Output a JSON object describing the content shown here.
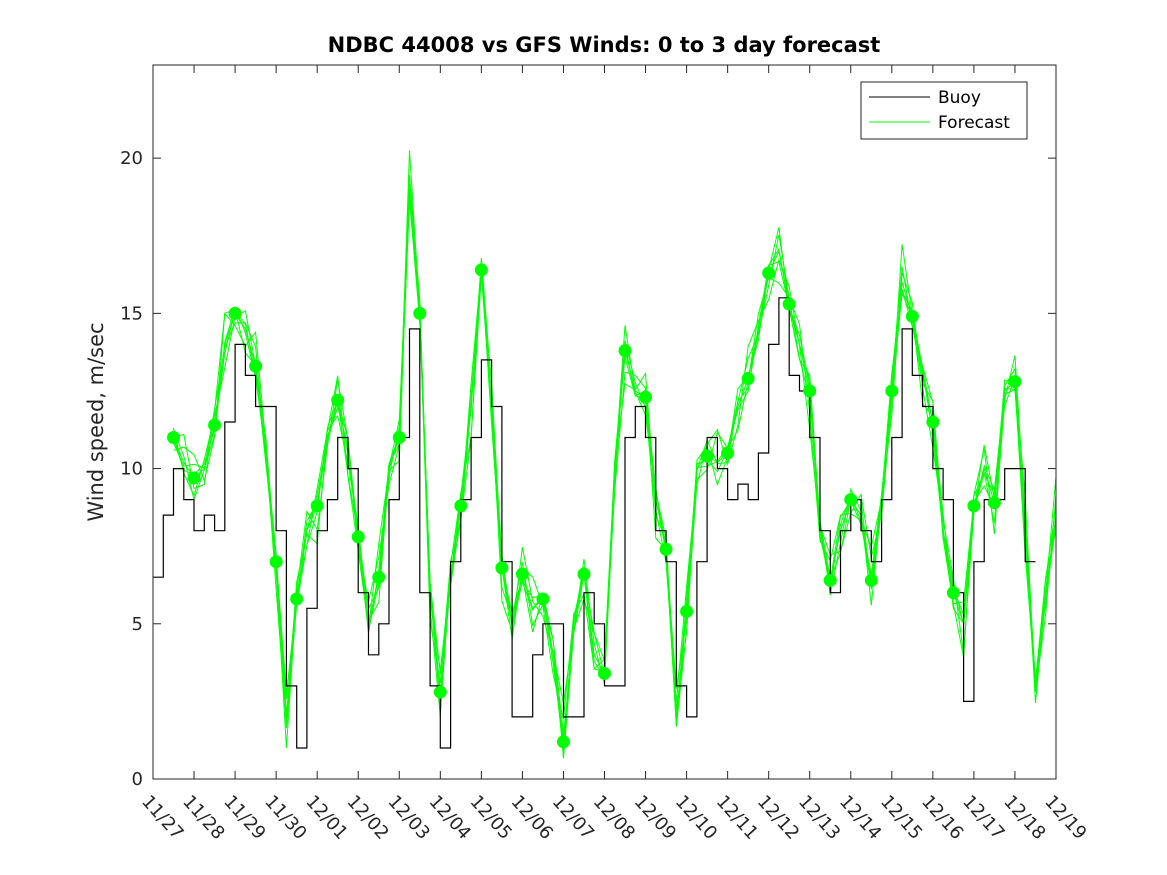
{
  "chart_data": {
    "type": "line",
    "title": "NDBC 44008 vs GFS Winds: 0 to 3 day forecast",
    "xlabel": "",
    "ylabel": "Wind speed, m/sec",
    "xlim": [
      0,
      22
    ],
    "ylim": [
      0,
      23
    ],
    "yticks": [
      0,
      5,
      10,
      15,
      20
    ],
    "ytick_labels": [
      "0",
      "5",
      "10",
      "15",
      "20"
    ],
    "xtick_labels": [
      "11/27",
      "11/28",
      "11/29",
      "11/30",
      "12/01",
      "12/02",
      "12/03",
      "12/04",
      "12/05",
      "12/06",
      "12/07",
      "12/08",
      "12/09",
      "12/10",
      "12/11",
      "12/12",
      "12/13",
      "12/14",
      "12/15",
      "12/16",
      "12/17",
      "12/18",
      "12/19"
    ],
    "legend": {
      "location": "top-right",
      "entries": [
        "Buoy",
        "Forecast"
      ]
    },
    "colors": {
      "buoy": "#000000",
      "forecast": "#00ff00",
      "axes": "#262626"
    },
    "series": [
      {
        "name": "Buoy",
        "style": "stepped-line",
        "x": [
          0,
          0.25,
          0.5,
          0.75,
          1,
          1.25,
          1.5,
          1.75,
          2,
          2.25,
          2.5,
          2.75,
          3,
          3.25,
          3.5,
          3.75,
          4,
          4.25,
          4.5,
          4.75,
          5,
          5.25,
          5.5,
          5.75,
          6,
          6.25,
          6.5,
          6.75,
          7,
          7.25,
          7.5,
          7.75,
          8,
          8.25,
          8.5,
          8.75,
          9,
          9.25,
          9.5,
          9.75,
          10,
          10.25,
          10.5,
          10.75,
          11,
          11.25,
          11.5,
          11.75,
          12,
          12.25,
          12.5,
          12.75,
          13,
          13.25,
          13.5,
          13.75,
          14,
          14.25,
          14.5,
          14.75,
          15,
          15.25,
          15.5,
          15.75,
          16,
          16.25,
          16.5,
          16.75,
          17,
          17.25,
          17.5,
          17.75,
          18,
          18.25,
          18.5,
          18.75,
          19,
          19.25,
          19.5,
          19.75,
          20,
          20.25,
          20.5,
          20.75,
          21,
          21.25
        ],
        "values": [
          6.5,
          8.5,
          10,
          9,
          8,
          8.5,
          8,
          11.5,
          14,
          13,
          12,
          12,
          8,
          3,
          1,
          5.5,
          8,
          9,
          11,
          10,
          6,
          4,
          5,
          9,
          11,
          14.5,
          6,
          3,
          1,
          7,
          9,
          11,
          13.5,
          12,
          7,
          2,
          2,
          4,
          5,
          5,
          2,
          2,
          6,
          5,
          3,
          3,
          11,
          12,
          11,
          8,
          7,
          3,
          2,
          7,
          11,
          10,
          9,
          9.5,
          9,
          10.5,
          14,
          15.5,
          13,
          12.5,
          11,
          8,
          6,
          8,
          9,
          8,
          7,
          9,
          11,
          14.5,
          13,
          12,
          10,
          9,
          6,
          2.5,
          7,
          9,
          9,
          10,
          10,
          7
        ]
      },
      {
        "name": "Forecast",
        "style": "multi-line",
        "x": [
          0.5,
          0.75,
          1,
          1.25,
          1.5,
          1.75,
          2,
          2.25,
          2.5,
          2.75,
          3,
          3.25,
          3.5,
          3.75,
          4,
          4.25,
          4.5,
          4.75,
          5,
          5.25,
          5.5,
          5.75,
          6,
          6.25,
          6.5,
          6.75,
          7,
          7.25,
          7.5,
          7.75,
          8,
          8.25,
          8.5,
          8.75,
          9,
          9.25,
          9.5,
          9.75,
          10,
          10.25,
          10.5,
          10.75,
          11,
          11.25,
          11.5,
          11.75,
          12,
          12.25,
          12.5,
          12.75,
          13,
          13.25,
          13.5,
          13.75,
          14,
          14.25,
          14.5,
          14.75,
          15,
          15.25,
          15.5,
          15.75,
          16,
          16.25,
          16.5,
          16.75,
          17,
          17.25,
          17.5,
          17.75,
          18,
          18.25,
          18.5,
          18.75,
          19,
          19.25,
          19.5,
          19.75,
          20,
          20.25,
          20.5,
          20.75,
          21,
          21.25,
          21.5,
          21.75,
          22
        ],
        "values": [
          11,
          10.2,
          9.7,
          10,
          11.4,
          14,
          15,
          14.5,
          13.3,
          10.5,
          7,
          2,
          5.8,
          8,
          8.8,
          11,
          12.2,
          10.5,
          7.8,
          5,
          6.5,
          10,
          11,
          19,
          15,
          6,
          2.8,
          6.5,
          8.8,
          12,
          16.4,
          12,
          6.8,
          5,
          6.6,
          5.5,
          5.8,
          4,
          1.2,
          5,
          6.6,
          4,
          3.4,
          10,
          13.8,
          12.5,
          12.3,
          9,
          7.4,
          2,
          5.4,
          10,
          10.4,
          10.2,
          10.5,
          12,
          12.9,
          14.5,
          16.3,
          17,
          15.3,
          14,
          12.5,
          8,
          6.4,
          8,
          9,
          8.5,
          6.4,
          9,
          12.5,
          16,
          14.9,
          13,
          11.5,
          8,
          6,
          5,
          8.8,
          10,
          8.9,
          12.5,
          12.8,
          8,
          3,
          6,
          8.5
        ]
      }
    ],
    "forecast_markers": {
      "x": [
        0.5,
        1,
        1.5,
        2,
        2.5,
        3,
        3.5,
        4,
        4.5,
        5,
        5.5,
        6,
        6.5,
        7,
        7.5,
        8,
        8.5,
        9,
        9.5,
        10,
        10.5,
        11,
        11.5,
        12,
        12.5,
        13,
        13.5,
        14,
        14.5,
        15,
        15.5,
        16,
        16.5,
        17,
        17.5,
        18,
        18.5,
        19,
        19.5,
        20,
        20.5,
        21
      ],
      "values": [
        11,
        9.7,
        11.4,
        15,
        13.3,
        7,
        5.8,
        8.8,
        12.2,
        7.8,
        6.5,
        11,
        15,
        2.8,
        8.8,
        16.4,
        6.8,
        6.6,
        5.8,
        1.2,
        6.6,
        3.4,
        13.8,
        12.3,
        7.4,
        5.4,
        10.4,
        10.5,
        12.9,
        16.3,
        15.3,
        12.5,
        6.4,
        9,
        6.4,
        12.5,
        14.9,
        11.5,
        6,
        8.8,
        8.9,
        12.8
      ]
    }
  }
}
